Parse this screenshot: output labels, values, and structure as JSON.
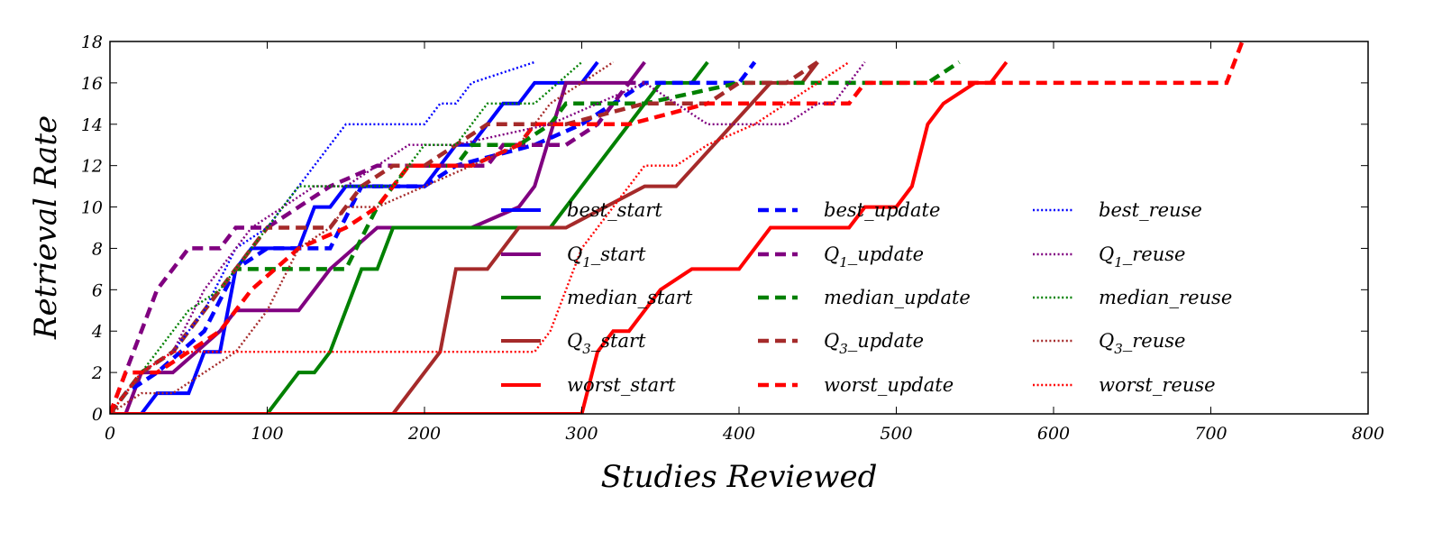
{
  "chart_data": {
    "type": "line",
    "xlabel": "Studies Reviewed",
    "ylabel": "Retrieval Rate",
    "xlim": [
      0,
      800
    ],
    "ylim": [
      0,
      18
    ],
    "xticks": [
      0,
      100,
      200,
      300,
      400,
      500,
      600,
      700,
      800
    ],
    "yticks": [
      0,
      2,
      4,
      6,
      8,
      10,
      12,
      14,
      16,
      18
    ],
    "grid": false,
    "legend_placement": "lower-right (3 columns)",
    "colors": {
      "best": "#0000ff",
      "q1": "#800080",
      "median": "#008000",
      "q3": "#a52a2a",
      "worst": "#ff0000"
    },
    "series": [
      {
        "name": "best_start",
        "name_main": "best_start",
        "color": "#0000ff",
        "style": "solid",
        "x": [
          0,
          20,
          30,
          50,
          60,
          70,
          80,
          90,
          120,
          130,
          140,
          150,
          200,
          210,
          220,
          230,
          250,
          260,
          270,
          300,
          310
        ],
        "y": [
          0,
          0,
          1,
          1,
          3,
          3,
          7,
          8,
          8,
          10,
          10,
          11,
          11,
          12,
          13,
          13,
          15,
          15,
          16,
          16,
          17
        ]
      },
      {
        "name": "Q1_start",
        "name_main": "Q",
        "name_sub": "1",
        "name_rest": "_start",
        "color": "#800080",
        "style": "solid",
        "x": [
          0,
          10,
          20,
          40,
          70,
          80,
          120,
          140,
          170,
          230,
          260,
          270,
          290,
          330,
          340
        ],
        "y": [
          0,
          0,
          2,
          2,
          4,
          5,
          5,
          7,
          9,
          9,
          10,
          11,
          16,
          16,
          17
        ]
      },
      {
        "name": "median_start",
        "name_main": "median_start",
        "color": "#008000",
        "style": "solid",
        "x": [
          0,
          100,
          120,
          130,
          140,
          160,
          170,
          180,
          260,
          280,
          300,
          350,
          370,
          380
        ],
        "y": [
          0,
          0,
          2,
          2,
          3,
          7,
          7,
          9,
          9,
          9,
          11,
          16,
          16,
          17
        ]
      },
      {
        "name": "Q3_start",
        "name_main": "Q",
        "name_sub": "3",
        "name_rest": "_start",
        "color": "#a52a2a",
        "style": "solid",
        "x": [
          0,
          180,
          210,
          220,
          240,
          260,
          290,
          340,
          360,
          420,
          440,
          450
        ],
        "y": [
          0,
          0,
          3,
          7,
          7,
          9,
          9,
          11,
          11,
          16,
          16,
          17
        ]
      },
      {
        "name": "worst_start",
        "name_main": "worst_start",
        "color": "#ff0000",
        "style": "solid",
        "x": [
          0,
          300,
          310,
          320,
          330,
          350,
          370,
          400,
          420,
          470,
          480,
          500,
          510,
          520,
          530,
          550,
          560,
          570
        ],
        "y": [
          0,
          0,
          3,
          4,
          4,
          6,
          7,
          7,
          9,
          9,
          10,
          10,
          11,
          14,
          15,
          16,
          16,
          17
        ]
      },
      {
        "name": "best_update",
        "name_main": "best_update",
        "color": "#0000ff",
        "style": "dashed",
        "x": [
          0,
          10,
          30,
          60,
          80,
          100,
          140,
          160,
          200,
          220,
          270,
          300,
          320,
          340,
          380,
          400,
          410
        ],
        "y": [
          0,
          1,
          2,
          4,
          7,
          8,
          8,
          11,
          11,
          12,
          13,
          14,
          15,
          16,
          16,
          16,
          17
        ]
      },
      {
        "name": "Q1_update",
        "name_main": "Q",
        "name_sub": "1",
        "name_rest": "_update",
        "color": "#800080",
        "style": "dashed",
        "x": [
          0,
          10,
          20,
          30,
          50,
          70,
          80,
          100,
          140,
          170,
          210,
          240,
          250,
          270,
          290,
          310,
          330,
          340
        ],
        "y": [
          0,
          2,
          4,
          6,
          8,
          8,
          9,
          9,
          11,
          12,
          12,
          12,
          13,
          13,
          13,
          14,
          16,
          16
        ]
      },
      {
        "name": "median_update",
        "name_main": "median_update",
        "color": "#008000",
        "style": "dashed",
        "x": [
          0,
          10,
          20,
          40,
          60,
          80,
          90,
          150,
          170,
          190,
          220,
          230,
          260,
          280,
          290,
          310,
          340,
          400,
          520,
          540
        ],
        "y": [
          0,
          1,
          2,
          3,
          5,
          7,
          7,
          7,
          10,
          12,
          12,
          13,
          13,
          14,
          15,
          15,
          15,
          16,
          16,
          17
        ]
      },
      {
        "name": "Q3_update",
        "name_main": "Q",
        "name_sub": "3",
        "name_rest": "_update",
        "color": "#a52a2a",
        "style": "dashed",
        "x": [
          0,
          20,
          40,
          80,
          100,
          140,
          160,
          180,
          200,
          220,
          240,
          290,
          340,
          380,
          400,
          430,
          450
        ],
        "y": [
          0,
          2,
          3,
          7,
          9,
          9,
          11,
          12,
          12,
          13,
          14,
          14,
          15,
          15,
          16,
          16,
          17
        ]
      },
      {
        "name": "worst_update",
        "name_main": "worst_update",
        "color": "#ff0000",
        "style": "dashed",
        "x": [
          0,
          10,
          30,
          50,
          70,
          90,
          120,
          150,
          170,
          190,
          230,
          260,
          270,
          300,
          330,
          380,
          420,
          470,
          480,
          560,
          700,
          710,
          720
        ],
        "y": [
          0,
          2,
          2,
          3,
          4,
          6,
          8,
          9,
          10,
          12,
          12,
          13,
          14,
          14,
          14,
          15,
          15,
          15,
          16,
          16,
          16,
          16,
          18
        ]
      },
      {
        "name": "best_reuse",
        "name_main": "best_reuse",
        "color": "#0000ff",
        "style": "dotted",
        "x": [
          0,
          20,
          40,
          60,
          80,
          100,
          120,
          140,
          150,
          200,
          210,
          220,
          230,
          270
        ],
        "y": [
          0,
          2,
          3,
          5,
          8,
          9,
          11,
          13,
          14,
          14,
          15,
          15,
          16,
          17
        ]
      },
      {
        "name": "Q1_reuse",
        "name_main": "Q",
        "name_sub": "1",
        "name_rest": "_reuse",
        "color": "#800080",
        "style": "dotted",
        "x": [
          0,
          20,
          40,
          60,
          90,
          110,
          130,
          150,
          190,
          220,
          280,
          340,
          380,
          430,
          450,
          460,
          470,
          480
        ],
        "y": [
          0,
          2,
          3,
          6,
          9,
          10,
          11,
          11,
          13,
          13,
          14,
          16,
          14,
          14,
          15,
          15,
          16,
          17
        ]
      },
      {
        "name": "median_reuse",
        "name_main": "median_reuse",
        "color": "#008000",
        "style": "dotted",
        "x": [
          0,
          20,
          40,
          50,
          70,
          80,
          90,
          120,
          130,
          170,
          180,
          200,
          220,
          240,
          270,
          300
        ],
        "y": [
          0,
          2,
          4,
          5,
          6,
          7,
          8,
          11,
          11,
          11,
          11,
          13,
          13,
          15,
          15,
          17
        ]
      },
      {
        "name": "Q3_reuse",
        "name_main": "Q",
        "name_sub": "3",
        "name_rest": "_reuse",
        "color": "#a52a2a",
        "style": "dotted",
        "x": [
          0,
          20,
          40,
          60,
          80,
          100,
          120,
          140,
          150,
          170,
          200,
          230,
          260,
          280,
          300,
          320
        ],
        "y": [
          0,
          1,
          1,
          2,
          3,
          5,
          8,
          9,
          10,
          10,
          11,
          12,
          13,
          15,
          16,
          17
        ]
      },
      {
        "name": "worst_reuse",
        "name_main": "worst_reuse",
        "color": "#ff0000",
        "style": "dotted",
        "x": [
          0,
          10,
          20,
          40,
          80,
          100,
          130,
          140,
          270,
          280,
          300,
          340,
          350,
          360,
          380,
          410,
          450,
          470
        ],
        "y": [
          0,
          1,
          2,
          3,
          3,
          3,
          3,
          3,
          3,
          4,
          8,
          12,
          12,
          12,
          13,
          14,
          16,
          17
        ]
      }
    ]
  }
}
